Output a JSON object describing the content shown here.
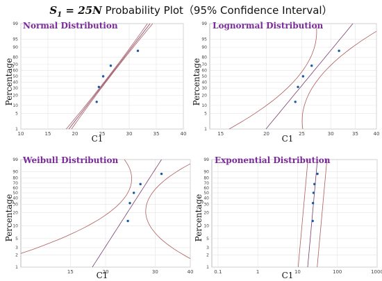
{
  "title": {
    "stat_label": "25N",
    "text": "Probability Plot（95% Confidence Interval）"
  },
  "colors": {
    "title": "#7a2a9a",
    "ci_line": "#b05a5a",
    "fit_line": "#7a3a6a",
    "point": "#1a5aa0",
    "grid": "#e4e4e4",
    "frame": "#aaaaaa"
  },
  "chart_data": [
    {
      "type": "scatter",
      "title": "Normal Distribution",
      "xlabel": "C1",
      "ylabel": "Percentage",
      "x_scale": "linear",
      "xlim": [
        10,
        40
      ],
      "x_ticks": [
        10,
        15,
        20,
        25,
        30,
        35,
        40
      ],
      "x_tick_labels": [
        "10",
        "15",
        "20",
        "25",
        "30",
        "35",
        "40"
      ],
      "y_ticks": [
        1,
        5,
        10,
        20,
        30,
        40,
        50,
        60,
        70,
        80,
        90,
        95,
        99
      ],
      "y_tick_labels": [
        "1",
        "5",
        "10",
        "20",
        "30",
        "40",
        "50",
        "60",
        "70",
        "80",
        "90",
        "95",
        "99"
      ],
      "grid": true,
      "points": [
        [
          24.0,
          13
        ],
        [
          24.4,
          32
        ],
        [
          25.2,
          50
        ],
        [
          26.6,
          68
        ],
        [
          31.6,
          87
        ]
      ]
    },
    {
      "type": "scatter",
      "title": "Lognormal Distribution",
      "xlabel": "C1",
      "ylabel": "Percentage",
      "x_scale": "log",
      "xlim": [
        14,
        40
      ],
      "x_ticks": [
        15,
        20,
        25,
        30,
        35,
        40
      ],
      "x_tick_labels": [
        "15",
        "20",
        "25",
        "30",
        "35",
        "40"
      ],
      "y_ticks": [
        1,
        5,
        10,
        20,
        30,
        40,
        50,
        60,
        70,
        80,
        90,
        95,
        99
      ],
      "y_tick_labels": [
        "1",
        "5",
        "10",
        "20",
        "30",
        "40",
        "50",
        "60",
        "70",
        "80",
        "90",
        "95",
        "99"
      ],
      "grid": true,
      "points": [
        [
          24.0,
          13
        ],
        [
          24.4,
          32
        ],
        [
          25.2,
          50
        ],
        [
          26.6,
          68
        ],
        [
          31.6,
          87
        ]
      ]
    },
    {
      "type": "scatter",
      "title": "Weibull Distribution",
      "xlabel": "C1",
      "ylabel": "Percentage",
      "x_scale": "log",
      "xlim": [
        10,
        40
      ],
      "x_ticks": [
        15,
        20,
        30,
        40
      ],
      "x_tick_labels": [
        "15",
        "20",
        "30",
        "40"
      ],
      "y_ticks": [
        1,
        2,
        3,
        5,
        10,
        20,
        30,
        40,
        50,
        60,
        70,
        80,
        90,
        99
      ],
      "y_tick_labels": [
        "1",
        "2",
        "3",
        "5",
        "10",
        "20",
        "30",
        "40",
        "50",
        "60",
        "70",
        "80",
        "90",
        "99"
      ],
      "grid": true,
      "points": [
        [
          24.0,
          13
        ],
        [
          24.4,
          32
        ],
        [
          25.2,
          50
        ],
        [
          26.6,
          68
        ],
        [
          31.6,
          87
        ]
      ]
    },
    {
      "type": "scatter",
      "title": "Exponential Distribution",
      "xlabel": "C1",
      "ylabel": "Percentage",
      "x_scale": "log",
      "xlim": [
        0.07,
        1000
      ],
      "x_ticks": [
        0.1,
        1,
        10,
        100,
        1000
      ],
      "x_tick_labels": [
        "0.1",
        "1",
        "10",
        "100",
        "1000"
      ],
      "y_ticks": [
        1,
        2,
        3,
        5,
        10,
        20,
        30,
        40,
        50,
        60,
        70,
        80,
        90,
        99
      ],
      "y_tick_labels": [
        "1",
        "2",
        "3",
        "5",
        "10",
        "20",
        "30",
        "40",
        "50",
        "60",
        "70",
        "80",
        "90",
        "99"
      ],
      "grid": true,
      "points": [
        [
          24.0,
          13
        ],
        [
          24.4,
          32
        ],
        [
          25.2,
          50
        ],
        [
          26.6,
          68
        ],
        [
          31.6,
          87
        ]
      ]
    }
  ]
}
